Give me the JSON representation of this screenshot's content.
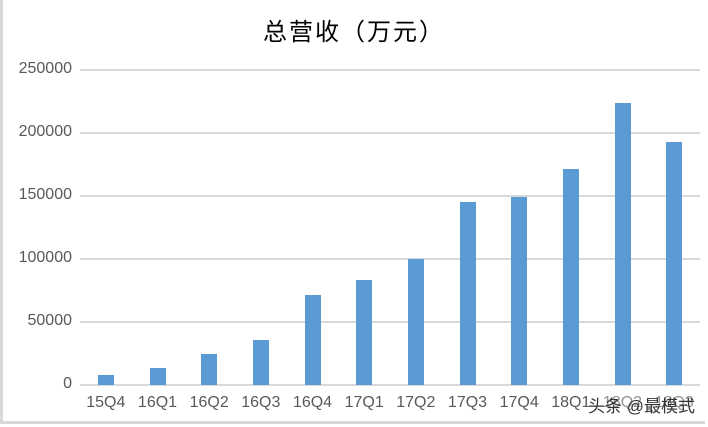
{
  "chart_data": {
    "type": "bar",
    "title": "总营收（万元）",
    "xlabel": "",
    "ylabel": "",
    "ylim": [
      0,
      250000
    ],
    "yticks": [
      0,
      50000,
      100000,
      150000,
      200000,
      250000
    ],
    "grid": true,
    "legend": null,
    "categories": [
      "15Q4",
      "16Q1",
      "16Q2",
      "16Q3",
      "16Q4",
      "17Q1",
      "17Q2",
      "17Q3",
      "17Q4",
      "18Q1",
      "18Q2",
      "18Q3"
    ],
    "values": [
      8000,
      13500,
      24500,
      35500,
      71500,
      83500,
      100000,
      145000,
      149000,
      171500,
      224000,
      193000
    ],
    "bar_color": "#5b9bd5"
  },
  "labels": {
    "title": "总营收（万元）",
    "yticks": [
      "0",
      "50000",
      "100000",
      "150000",
      "200000",
      "250000"
    ],
    "xticks": [
      "15Q4",
      "16Q1",
      "16Q2",
      "16Q3",
      "16Q4",
      "17Q1",
      "17Q2",
      "17Q3",
      "17Q4",
      "18Q1",
      "18Q2",
      "18Q3"
    ],
    "watermark": "头条 @最模式"
  }
}
